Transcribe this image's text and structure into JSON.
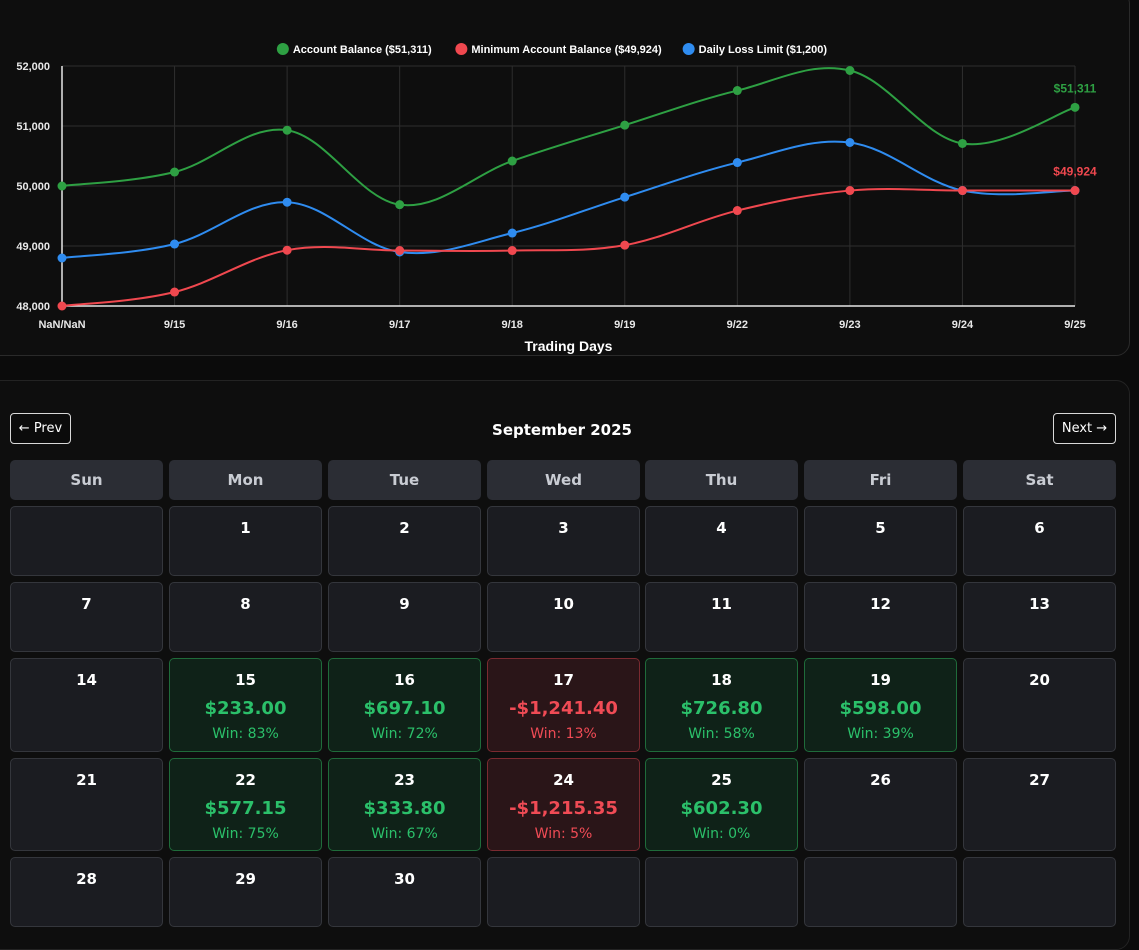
{
  "chart_data": {
    "type": "line",
    "x": [
      "NaN/NaN",
      "9/15",
      "9/16",
      "9/17",
      "9/18",
      "9/19",
      "9/22",
      "9/23",
      "9/24",
      "9/25"
    ],
    "xlabel": "Trading Days",
    "ylabel": "",
    "ylim": [
      48000,
      52000
    ],
    "yticks": [
      "48,000",
      "49,000",
      "50,000",
      "51,000",
      "52,000"
    ],
    "grid": true,
    "legend_position": "top",
    "series": [
      {
        "name": "Account Balance ($51,311)",
        "color": "#2ea043",
        "values": [
          50000,
          50233,
          50930,
          49689,
          50416,
          51014,
          51591,
          51925,
          50709,
          51311
        ],
        "end_label": "$51,311"
      },
      {
        "name": "Minimum Account Balance ($49,924)",
        "color": "#f0484f",
        "values": [
          48000,
          48233,
          48930,
          48924,
          48924,
          49014,
          49591,
          49924,
          49924,
          49924
        ],
        "end_label": "$49,924"
      },
      {
        "name": "Daily Loss Limit ($1,200)",
        "color": "#2f8cf0",
        "values": [
          48800,
          49033,
          49730,
          48900,
          49216,
          49814,
          50391,
          50725,
          49924,
          49924
        ]
      }
    ]
  },
  "calendar": {
    "prev_label": "← Prev",
    "next_label": "Next →",
    "month_title": "September 2025",
    "weekdays": [
      "Sun",
      "Mon",
      "Tue",
      "Wed",
      "Thu",
      "Fri",
      "Sat"
    ],
    "weeks": [
      [
        {
          "day": ""
        },
        {
          "day": "1"
        },
        {
          "day": "2"
        },
        {
          "day": "3"
        },
        {
          "day": "4"
        },
        {
          "day": "5"
        },
        {
          "day": "6"
        }
      ],
      [
        {
          "day": "7"
        },
        {
          "day": "8"
        },
        {
          "day": "9"
        },
        {
          "day": "10"
        },
        {
          "day": "11"
        },
        {
          "day": "12"
        },
        {
          "day": "13"
        }
      ],
      [
        {
          "day": "14"
        },
        {
          "day": "15",
          "pnl": "$233.00",
          "win": "Win: 83%",
          "status": "win"
        },
        {
          "day": "16",
          "pnl": "$697.10",
          "win": "Win: 72%",
          "status": "win"
        },
        {
          "day": "17",
          "pnl": "-$1,241.40",
          "win": "Win: 13%",
          "status": "loss"
        },
        {
          "day": "18",
          "pnl": "$726.80",
          "win": "Win: 58%",
          "status": "win"
        },
        {
          "day": "19",
          "pnl": "$598.00",
          "win": "Win: 39%",
          "status": "win"
        },
        {
          "day": "20"
        }
      ],
      [
        {
          "day": "21"
        },
        {
          "day": "22",
          "pnl": "$577.15",
          "win": "Win: 75%",
          "status": "win"
        },
        {
          "day": "23",
          "pnl": "$333.80",
          "win": "Win: 67%",
          "status": "win"
        },
        {
          "day": "24",
          "pnl": "-$1,215.35",
          "win": "Win: 5%",
          "status": "loss"
        },
        {
          "day": "25",
          "pnl": "$602.30",
          "win": "Win: 0%",
          "status": "win"
        },
        {
          "day": "26"
        },
        {
          "day": "27"
        }
      ],
      [
        {
          "day": "28"
        },
        {
          "day": "29"
        },
        {
          "day": "30"
        },
        {
          "day": ""
        },
        {
          "day": ""
        },
        {
          "day": ""
        },
        {
          "day": ""
        }
      ]
    ]
  }
}
